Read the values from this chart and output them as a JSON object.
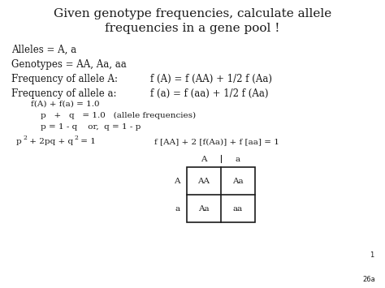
{
  "title_line1": "Given genotype frequencies, calculate allele",
  "title_line2": "frequencies in a gene pool !",
  "bg_color": "#ffffff",
  "text_color": "#1a1a1a",
  "font_size_title": 11.0,
  "font_size_body": 8.5,
  "font_size_small": 7.5,
  "font_size_super": 5.5,
  "slide_number": "1",
  "slide_label": "26a"
}
